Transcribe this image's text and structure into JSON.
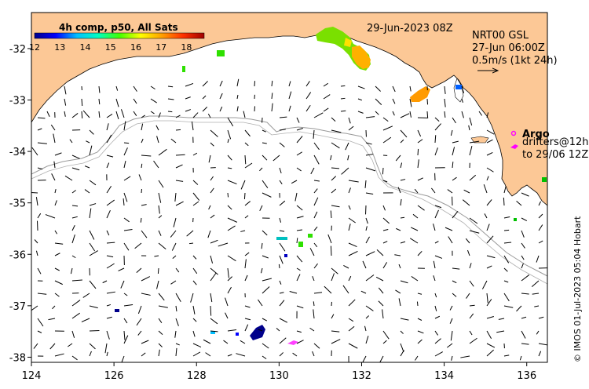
{
  "colors": {
    "land": "#fcc896",
    "ocean": "#ffffff",
    "frame": "#000000",
    "contour": "#9a9a9a",
    "argo": "#ff00ff",
    "drifter": "#ff00ff"
  },
  "colorbar": {
    "title": "4h comp, p50, All Sats",
    "labels": [
      "12",
      "13",
      "14",
      "15",
      "16",
      "17",
      "18"
    ],
    "range": [
      12,
      18.7
    ],
    "stops": [
      "#00008b",
      "#0000ff",
      "#00bfff",
      "#00ffc0",
      "#40ff00",
      "#ffff00",
      "#ffa000",
      "#ff3000",
      "#a00000"
    ]
  },
  "map": {
    "x_ticks": [
      "124",
      "126",
      "128",
      "130",
      "132",
      "134",
      "136"
    ],
    "y_ticks": [
      "-32",
      "-33",
      "-34",
      "-35",
      "-36",
      "-37",
      "-38"
    ],
    "lon_range": [
      124,
      136.5
    ],
    "lat_range": [
      -31.3,
      -38.1
    ]
  },
  "header": {
    "date": "29-Jun-2023 08Z"
  },
  "legend": {
    "product": "NRT00 GSL",
    "time": "27-Jun 06:00Z",
    "scale": "0.5m/s (1kt 24h)",
    "argo_label": "Argo",
    "drifters_line1": "drifters@12h",
    "drifters_line2": "to 29/06 12Z"
  },
  "credit": "© IMOS 01-Jul-2023 05:04 Hobart"
}
